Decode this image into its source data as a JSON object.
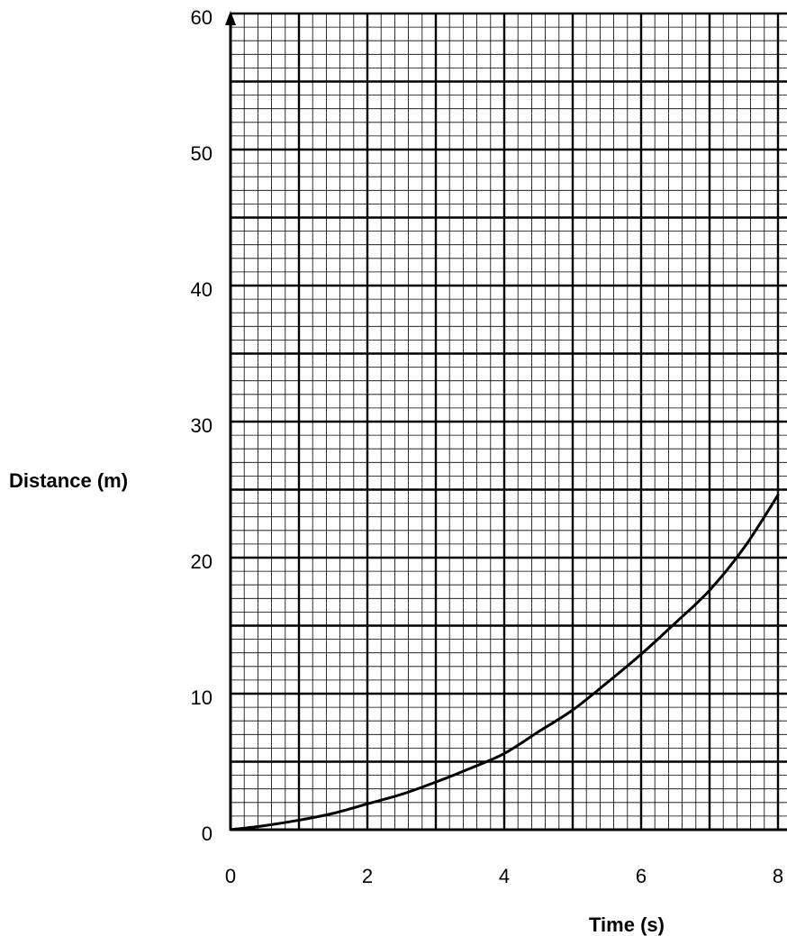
{
  "chart_data": {
    "type": "line",
    "title": "",
    "xlabel": "Time (s)",
    "ylabel": "Distance (m)",
    "xlim": [
      0,
      8
    ],
    "ylim": [
      0,
      60
    ],
    "x_ticks": [
      "0",
      "2",
      "4",
      "6",
      "8"
    ],
    "y_ticks": [
      "0",
      "10",
      "20",
      "30",
      "40",
      "50",
      "60"
    ],
    "grid": true,
    "series": [
      {
        "x": [
          0,
          0.5,
          1,
          1.5,
          2,
          2.5,
          3,
          3.5,
          4,
          4.5,
          5,
          5.5,
          6,
          6.5,
          7,
          7.5,
          8
        ],
        "values": [
          0,
          0.3,
          0.7,
          1.2,
          1.9,
          2.6,
          3.5,
          4.5,
          5.6,
          7.2,
          8.8,
          10.8,
          12.9,
          15.2,
          17.6,
          20.7,
          24.6
        ]
      }
    ]
  }
}
